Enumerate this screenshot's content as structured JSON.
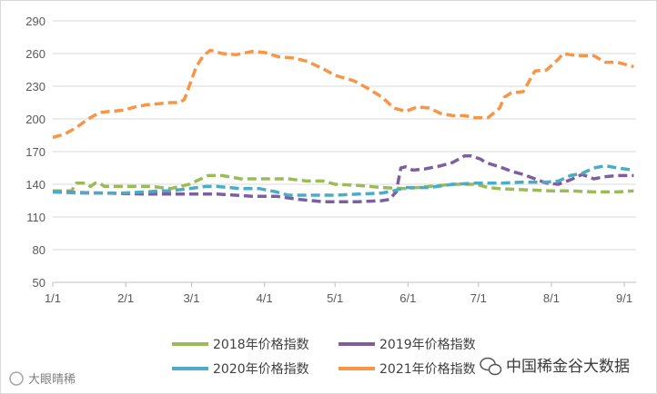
{
  "chart_data": {
    "type": "line",
    "title": "",
    "xlabel": "",
    "ylabel": "",
    "ylim": [
      50,
      290
    ],
    "yticks": [
      50,
      80,
      110,
      140,
      170,
      200,
      230,
      260,
      290
    ],
    "x_tick_labels": [
      "1/1",
      "2/1",
      "3/1",
      "4/1",
      "5/1",
      "6/1",
      "7/1",
      "8/1",
      "9/1"
    ],
    "x_tick_days": [
      0,
      31,
      59,
      90,
      120,
      151,
      181,
      212,
      243
    ],
    "xlim_days": [
      0,
      248
    ],
    "grid": "horizontal",
    "legend_position": "bottom",
    "series": [
      {
        "name": "2018年价格指数",
        "color": "#9bbb59",
        "points": [
          [
            0,
            134
          ],
          [
            8,
            134
          ],
          [
            10,
            141
          ],
          [
            14,
            141
          ],
          [
            16,
            138
          ],
          [
            18,
            141
          ],
          [
            20,
            141
          ],
          [
            22,
            138
          ],
          [
            35,
            138
          ],
          [
            42,
            138
          ],
          [
            50,
            136
          ],
          [
            58,
            140
          ],
          [
            62,
            144
          ],
          [
            66,
            148
          ],
          [
            72,
            148
          ],
          [
            80,
            145
          ],
          [
            90,
            145
          ],
          [
            100,
            145
          ],
          [
            108,
            143
          ],
          [
            115,
            143
          ],
          [
            120,
            140
          ],
          [
            130,
            139
          ],
          [
            140,
            137
          ],
          [
            150,
            136
          ],
          [
            160,
            138
          ],
          [
            170,
            140
          ],
          [
            176,
            140
          ],
          [
            180,
            140
          ],
          [
            185,
            137
          ],
          [
            190,
            136
          ],
          [
            200,
            135
          ],
          [
            212,
            134
          ],
          [
            220,
            134
          ],
          [
            230,
            133
          ],
          [
            240,
            133
          ],
          [
            247,
            134
          ]
        ]
      },
      {
        "name": "2019年价格指数",
        "color": "#7d5fa0",
        "points": [
          [
            0,
            133
          ],
          [
            20,
            132
          ],
          [
            40,
            131
          ],
          [
            55,
            131
          ],
          [
            70,
            131
          ],
          [
            85,
            129
          ],
          [
            95,
            129
          ],
          [
            105,
            126
          ],
          [
            110,
            125
          ],
          [
            115,
            124
          ],
          [
            120,
            124
          ],
          [
            130,
            124
          ],
          [
            140,
            125
          ],
          [
            143,
            126
          ],
          [
            146,
            133
          ],
          [
            148,
            155
          ],
          [
            150,
            156
          ],
          [
            153,
            153
          ],
          [
            158,
            154
          ],
          [
            165,
            157
          ],
          [
            170,
            160
          ],
          [
            175,
            166
          ],
          [
            178,
            166
          ],
          [
            182,
            163
          ],
          [
            184,
            160
          ],
          [
            190,
            156
          ],
          [
            195,
            152
          ],
          [
            200,
            149
          ],
          [
            205,
            145
          ],
          [
            210,
            141
          ],
          [
            215,
            140
          ],
          [
            220,
            144
          ],
          [
            225,
            149
          ],
          [
            230,
            145
          ],
          [
            235,
            147
          ],
          [
            240,
            148
          ],
          [
            247,
            148
          ]
        ]
      },
      {
        "name": "2020年价格指数",
        "color": "#4bacc6",
        "points": [
          [
            0,
            133
          ],
          [
            10,
            132
          ],
          [
            20,
            132
          ],
          [
            30,
            132
          ],
          [
            40,
            133
          ],
          [
            45,
            134
          ],
          [
            50,
            134
          ],
          [
            58,
            136
          ],
          [
            65,
            138
          ],
          [
            70,
            138
          ],
          [
            80,
            136
          ],
          [
            88,
            136
          ],
          [
            95,
            133
          ],
          [
            100,
            130
          ],
          [
            110,
            130
          ],
          [
            120,
            130
          ],
          [
            130,
            131
          ],
          [
            140,
            132
          ],
          [
            145,
            134
          ],
          [
            150,
            137
          ],
          [
            160,
            137
          ],
          [
            170,
            140
          ],
          [
            180,
            141
          ],
          [
            190,
            141
          ],
          [
            200,
            142
          ],
          [
            210,
            142
          ],
          [
            215,
            143
          ],
          [
            220,
            148
          ],
          [
            225,
            150
          ],
          [
            230,
            155
          ],
          [
            235,
            157
          ],
          [
            240,
            155
          ],
          [
            247,
            153
          ]
        ]
      },
      {
        "name": "2021年价格指数",
        "color": "#f79646",
        "points": [
          [
            0,
            183
          ],
          [
            5,
            186
          ],
          [
            10,
            192
          ],
          [
            15,
            200
          ],
          [
            20,
            206
          ],
          [
            25,
            207
          ],
          [
            30,
            208
          ],
          [
            35,
            211
          ],
          [
            40,
            213
          ],
          [
            45,
            214
          ],
          [
            50,
            215
          ],
          [
            54,
            215
          ],
          [
            56,
            218
          ],
          [
            58,
            230
          ],
          [
            61,
            248
          ],
          [
            64,
            258
          ],
          [
            67,
            263
          ],
          [
            72,
            260
          ],
          [
            78,
            259
          ],
          [
            85,
            262
          ],
          [
            90,
            261
          ],
          [
            96,
            257
          ],
          [
            102,
            256
          ],
          [
            108,
            253
          ],
          [
            115,
            246
          ],
          [
            120,
            240
          ],
          [
            128,
            235
          ],
          [
            134,
            228
          ],
          [
            140,
            220
          ],
          [
            145,
            210
          ],
          [
            150,
            207
          ],
          [
            155,
            211
          ],
          [
            160,
            210
          ],
          [
            165,
            205
          ],
          [
            170,
            203
          ],
          [
            175,
            203
          ],
          [
            180,
            201
          ],
          [
            185,
            201
          ],
          [
            190,
            210
          ],
          [
            192,
            220
          ],
          [
            195,
            224
          ],
          [
            200,
            225
          ],
          [
            205,
            244
          ],
          [
            210,
            245
          ],
          [
            215,
            255
          ],
          [
            217,
            260
          ],
          [
            220,
            259
          ],
          [
            225,
            258
          ],
          [
            230,
            258
          ],
          [
            235,
            252
          ],
          [
            240,
            252
          ],
          [
            247,
            248
          ]
        ]
      }
    ],
    "watermark_text": "大眼晴稀",
    "source_brand": "中国稀金谷大数据"
  }
}
